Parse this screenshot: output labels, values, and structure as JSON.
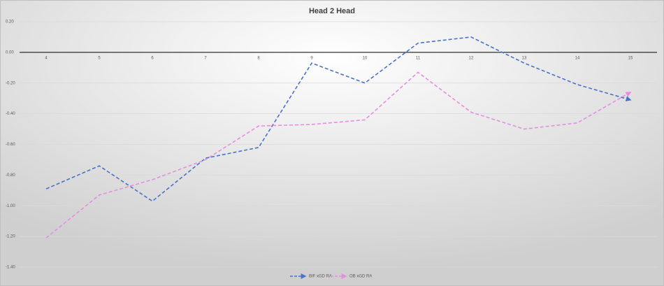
{
  "chart_data": {
    "type": "line",
    "title": "Head 2 Head",
    "categories": [
      "4",
      "5",
      "6",
      "7",
      "8",
      "9",
      "10",
      "11",
      "12",
      "13",
      "14",
      "15"
    ],
    "series": [
      {
        "name": "BIF xGD RA",
        "color": "#4a72c6",
        "values": [
          -0.89,
          -0.74,
          -0.97,
          -0.69,
          -0.62,
          -0.07,
          -0.2,
          0.06,
          0.1,
          -0.07,
          -0.21,
          -0.31
        ]
      },
      {
        "name": "OB xGD RA",
        "color": "#e58ee0",
        "values": [
          -1.21,
          -0.93,
          -0.83,
          -0.7,
          -0.48,
          -0.47,
          -0.44,
          -0.13,
          -0.39,
          -0.5,
          -0.46,
          -0.26
        ]
      }
    ],
    "ylim": [
      -1.4,
      0.2
    ],
    "yticks": [
      {
        "value": 0.2,
        "label": "0.20"
      },
      {
        "value": 0,
        "label": "0.00"
      },
      {
        "value": -0.2,
        "label": "-0.20"
      },
      {
        "value": -0.4,
        "label": "-0.40"
      },
      {
        "value": -0.6,
        "label": "-0.60"
      },
      {
        "value": -0.8,
        "label": "-0.80"
      },
      {
        "value": -1,
        "label": "-1.00"
      },
      {
        "value": -1.2,
        "label": "-1.20"
      },
      {
        "value": -1.4,
        "label": "-1.40"
      }
    ],
    "grid": true,
    "legend": "bottom"
  }
}
